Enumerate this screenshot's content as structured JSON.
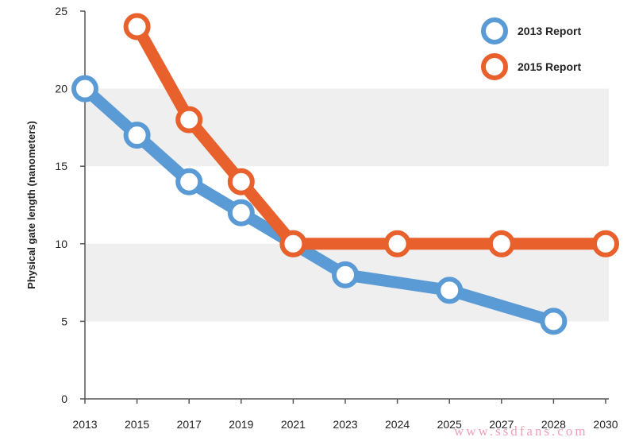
{
  "chart_data": {
    "type": "line",
    "title": "",
    "xlabel": "",
    "ylabel": "Physical gate length (nanometers)",
    "categories": [
      "2013",
      "2015",
      "2017",
      "2019",
      "2021",
      "2023",
      "2024",
      "2025",
      "2027",
      "2028",
      "2030"
    ],
    "ylim": [
      0,
      25
    ],
    "yticks": [
      0,
      5,
      10,
      15,
      20,
      25
    ],
    "grid": "alternating horizontal bands",
    "legend_placement": "top-right",
    "series": [
      {
        "name": "2013 Report",
        "color": "#5b9bd5",
        "values": [
          20,
          17,
          14,
          12,
          10,
          8,
          null,
          7,
          null,
          5,
          null
        ]
      },
      {
        "name": "2015 Report",
        "color": "#e8602c",
        "values": [
          null,
          24,
          18,
          14,
          10,
          null,
          10,
          null,
          10,
          null,
          10
        ]
      }
    ]
  },
  "watermark": "www.ssdfans.com"
}
